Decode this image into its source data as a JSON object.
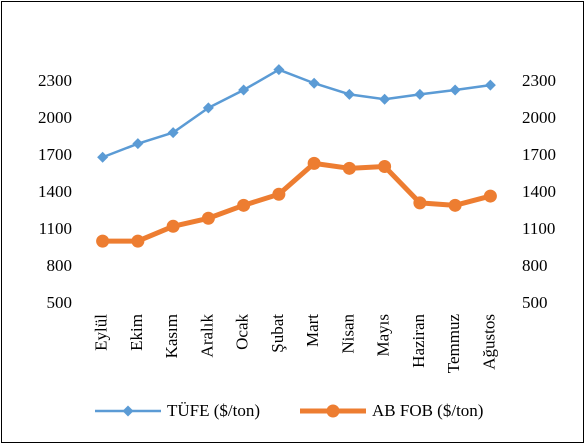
{
  "chart_data": {
    "type": "line",
    "categories": [
      "Eylül",
      "Ekim",
      "Kasım",
      "Aralık",
      "Ocak",
      "Şubat",
      "Mart",
      "Nisan",
      "Mayıs",
      "Haziran",
      "Temmuz",
      "Ağustos"
    ],
    "series": [
      {
        "name": "TÜFE ($/ton)",
        "color": "#5b9bd5",
        "marker": "diamond",
        "values": [
          1690,
          1800,
          1890,
          2090,
          2235,
          2400,
          2290,
          2200,
          2160,
          2200,
          2235,
          2275
        ]
      },
      {
        "name": "AB FOB ($/ton)",
        "color": "#ed7d31",
        "marker": "circle",
        "axis": "y2",
        "values": [
          1010,
          1010,
          1130,
          1195,
          1300,
          1390,
          1640,
          1600,
          1615,
          1320,
          1300,
          1375
        ]
      }
    ],
    "ylim": [
      500,
      2600
    ],
    "yticks": [
      500,
      800,
      1100,
      1400,
      1700,
      2000,
      2300
    ],
    "y2lim": [
      500,
      2600
    ],
    "y2ticks": [
      500,
      800,
      1100,
      1400,
      1700,
      2000,
      2300
    ],
    "grid": false,
    "legend": "bottom"
  }
}
